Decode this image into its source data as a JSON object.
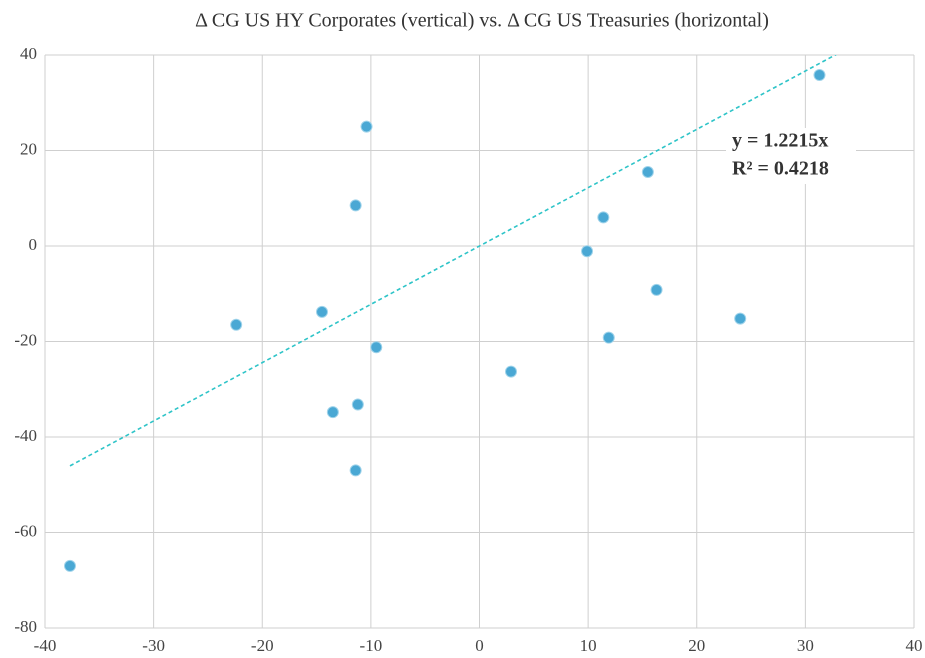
{
  "chart_data": {
    "type": "scatter",
    "title": "Δ CG US HY Corporates (vertical) vs. Δ CG US Treasuries (horizontal)",
    "x": [
      -37.7,
      -22.4,
      -14.5,
      -13.5,
      -11.2,
      -11.4,
      -11.4,
      -10.4,
      -9.5,
      2.9,
      9.9,
      11.4,
      11.9,
      15.5,
      16.3,
      24,
      31.3
    ],
    "values": [
      -67,
      -16.5,
      -13.8,
      -34.8,
      -33.2,
      8.5,
      -47,
      25,
      -21.2,
      -26.3,
      -1.1,
      6,
      -19.2,
      15.5,
      -9.2,
      -15.2,
      35.8
    ],
    "color": "#4aa8d4",
    "xlim": [
      -40,
      40
    ],
    "xticks": [
      -40,
      -30,
      -20,
      -10,
      0,
      10,
      20,
      30,
      40
    ],
    "ylim": [
      -80,
      40
    ],
    "yticks": [
      -80,
      -60,
      -40,
      -20,
      0,
      20,
      40
    ],
    "grid": true,
    "trendline": {
      "slope": 1.2215,
      "color": "#2ec4c8",
      "equation": "y = 1.2215x",
      "r_squared": "R² = 0.4218"
    }
  }
}
